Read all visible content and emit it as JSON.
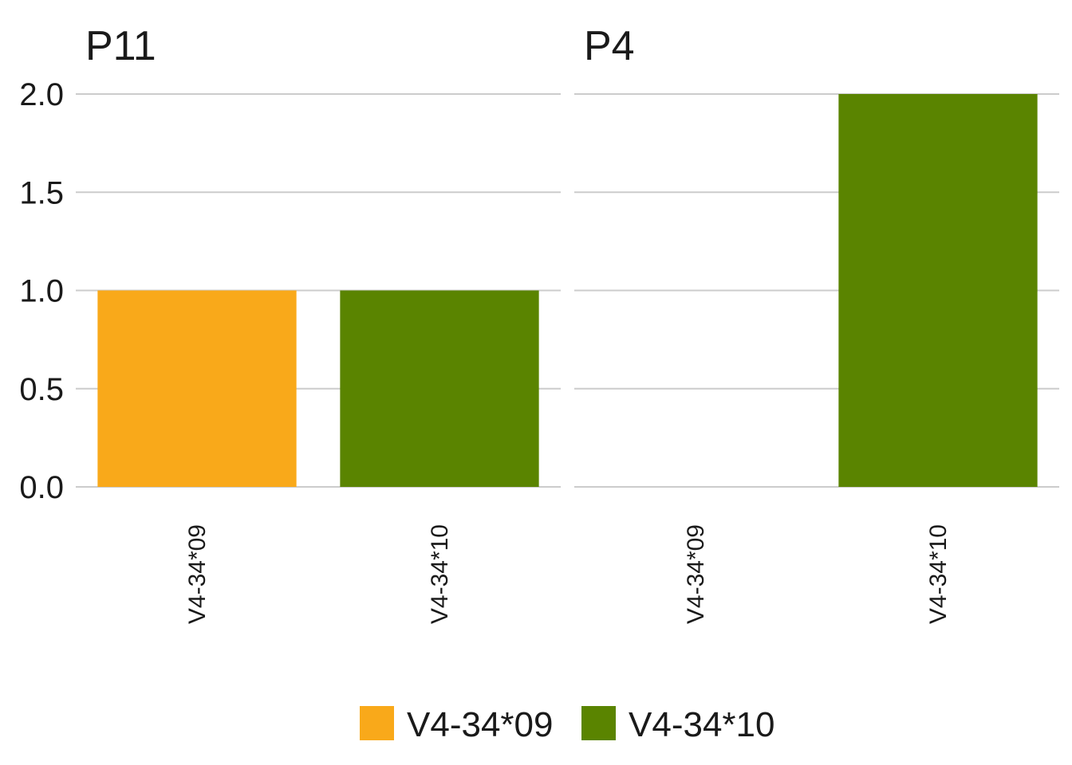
{
  "chart_data": {
    "type": "bar",
    "facets": [
      {
        "title": "P11",
        "categories": [
          "V4-34*09",
          "V4-34*10"
        ],
        "values": [
          1,
          1
        ]
      },
      {
        "title": "P4",
        "categories": [
          "V4-34*09",
          "V4-34*10"
        ],
        "values": [
          0,
          2
        ]
      }
    ],
    "series": [
      {
        "name": "V4-34*09",
        "color": "#F9A91A"
      },
      {
        "name": "V4-34*10",
        "color": "#5A8400"
      }
    ],
    "y_ticks": [
      "0.0",
      "0.5",
      "1.0",
      "1.5",
      "2.0"
    ],
    "ylim": [
      0,
      2
    ],
    "grid": "horizontal",
    "legend_position": "bottom",
    "xlabel": "",
    "ylabel": ""
  }
}
